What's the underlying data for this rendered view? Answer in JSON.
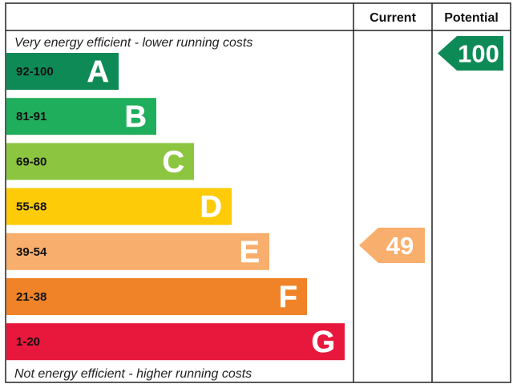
{
  "chart_data": {
    "type": "bar",
    "columns": {
      "current": "Current",
      "potential": "Potential"
    },
    "top_caption": "Very energy efficient - lower running costs",
    "bottom_caption": "Not energy efficient - higher running costs",
    "bands": [
      {
        "letter": "A",
        "range": "92-100",
        "color": "#0e8a56",
        "range_color": "#111111"
      },
      {
        "letter": "B",
        "range": "81-91",
        "color": "#1fae5b",
        "range_color": "#111111"
      },
      {
        "letter": "C",
        "range": "69-80",
        "color": "#8cc540",
        "range_color": "#111111"
      },
      {
        "letter": "D",
        "range": "55-68",
        "color": "#fecb08",
        "range_color": "#111111"
      },
      {
        "letter": "E",
        "range": "39-54",
        "color": "#f8ae6c",
        "range_color": "#111111"
      },
      {
        "letter": "F",
        "range": "21-38",
        "color": "#f08327",
        "range_color": "#111111"
      },
      {
        "letter": "G",
        "range": "1-20",
        "color": "#e8173c",
        "range_color": "#111111"
      }
    ],
    "current": {
      "value": 49,
      "label": "49",
      "band": "E",
      "color": "#f8ae6c"
    },
    "potential": {
      "value": 100,
      "label": "100",
      "band": "A",
      "color": "#0e8a56"
    }
  }
}
